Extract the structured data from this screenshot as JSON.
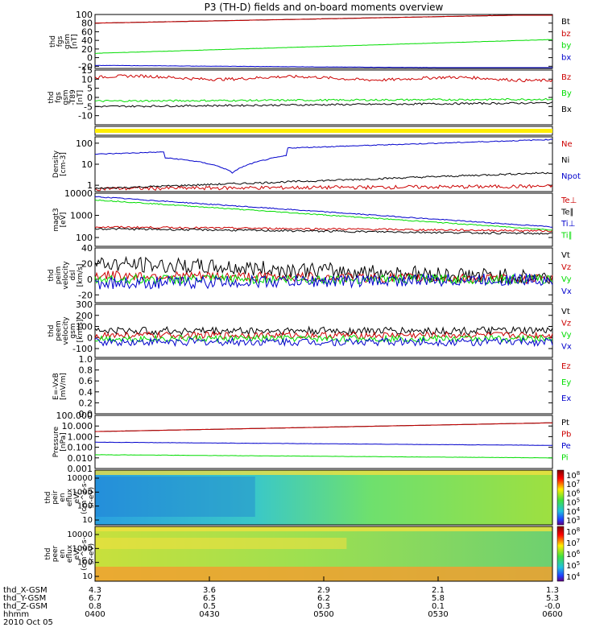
{
  "title": "P3 (TH-D) fields and on-board moments overview",
  "colors": {
    "black": "#000000",
    "red": "#cc0000",
    "green": "#00dd00",
    "blue": "#0000cc",
    "yellow": "#ffee00"
  },
  "chart_data": [
    {
      "type": "line",
      "id": "fgs",
      "ylabel": [
        "thd",
        "fgs",
        "gsm",
        "[nT]"
      ],
      "ylim": [
        -25,
        100
      ],
      "yscale": "linear",
      "ticks": [
        "100",
        "80",
        "60",
        "40",
        "20",
        "0",
        "-20"
      ],
      "tickvals": [
        100,
        80,
        60,
        40,
        20,
        0,
        -20
      ],
      "series": [
        {
          "name": "Bt",
          "color": "black",
          "from": 80,
          "to": 100,
          "noise": 0.3
        },
        {
          "name": "bz",
          "color": "red",
          "from": 80,
          "to": 100,
          "noise": 0.3
        },
        {
          "name": "by",
          "color": "green",
          "from": 10,
          "to": 42,
          "noise": 0.3
        },
        {
          "name": "bx",
          "color": "blue",
          "from": -18,
          "to": -25,
          "noise": 0.3
        }
      ]
    },
    {
      "type": "line",
      "id": "fgs_lo",
      "ylabel": [
        "thd",
        "fgs",
        "gsm",
        "-T89",
        "[nT]"
      ],
      "ylim": [
        -15,
        15
      ],
      "yscale": "linear",
      "ticks": [
        "15",
        "10",
        "5",
        "0",
        "-5",
        "-10"
      ],
      "tickvals": [
        15,
        10,
        5,
        0,
        -5,
        -10
      ],
      "series": [
        {
          "name": "Bz",
          "color": "red",
          "from": 11,
          "to": 10,
          "noise": 0.8,
          "wave": 1
        },
        {
          "name": "By",
          "color": "green",
          "from": -2,
          "to": -1,
          "noise": 0.5
        },
        {
          "name": "Bx",
          "color": "black",
          "from": -5,
          "to": -3,
          "noise": 0.5
        }
      ]
    },
    {
      "type": "line",
      "id": "density",
      "ylabel": [
        "Density",
        "[cm-3]"
      ],
      "ylim": [
        0.5,
        200
      ],
      "yscale": "log",
      "ticks": [
        "100",
        "10",
        "1"
      ],
      "tickvals": [
        100,
        10,
        1
      ],
      "series": [
        {
          "name": "Ne",
          "color": "red",
          "from": 0.7,
          "to": 0.9,
          "noise": 0.2
        },
        {
          "name": "Ni",
          "color": "black",
          "from": 0.7,
          "to": 4,
          "noise": 0.1
        },
        {
          "name": "Npot",
          "color": "blue",
          "from": 30,
          "to": 150,
          "noise": 0.05,
          "dip": 1
        }
      ]
    },
    {
      "type": "line",
      "id": "temps",
      "ylabel": [
        "magt3",
        "[eV]"
      ],
      "ylim": [
        40,
        10000
      ],
      "yscale": "log",
      "ticks": [
        "10000",
        "1000",
        "100"
      ],
      "tickvals": [
        10000,
        1000,
        100
      ],
      "series": [
        {
          "name": "Te⊥",
          "color": "red",
          "from": 300,
          "to": 200,
          "noise": 0.1
        },
        {
          "name": "Te∥",
          "color": "black",
          "from": 250,
          "to": 150,
          "noise": 0.1
        },
        {
          "name": "Ti⊥",
          "color": "blue",
          "from": 7000,
          "to": 300,
          "noise": 0.05
        },
        {
          "name": "Ti∥",
          "color": "green",
          "from": 5000,
          "to": 220,
          "noise": 0.05
        }
      ]
    },
    {
      "type": "line",
      "id": "peim",
      "ylabel": [
        "thd",
        "peim",
        "velocity",
        "dsl",
        "[km/s]"
      ],
      "ylim": [
        -30,
        40
      ],
      "yscale": "linear",
      "ticks": [
        "40",
        "20",
        "0",
        "-20"
      ],
      "tickvals": [
        40,
        20,
        0,
        -20
      ],
      "series": [
        {
          "name": "Vt",
          "color": "black",
          "from": 20,
          "to": 2,
          "noise": 10
        },
        {
          "name": "Vz",
          "color": "red",
          "from": 5,
          "to": 0,
          "noise": 6
        },
        {
          "name": "Vy",
          "color": "green",
          "from": 0,
          "to": 0,
          "noise": 6
        },
        {
          "name": "Vx",
          "color": "blue",
          "from": -5,
          "to": 0,
          "noise": 8
        }
      ]
    },
    {
      "type": "line",
      "id": "peem",
      "ylabel": [
        "thd",
        "peem",
        "velocity",
        "gsm",
        "[km/s]"
      ],
      "ylim": [
        -180,
        300
      ],
      "yscale": "linear",
      "ticks": [
        "300",
        "200",
        "100",
        "0",
        "-100"
      ],
      "tickvals": [
        300,
        200,
        100,
        0,
        -100
      ],
      "series": [
        {
          "name": "Vt",
          "color": "black",
          "from": 60,
          "to": 60,
          "noise": 35
        },
        {
          "name": "Vz",
          "color": "red",
          "from": 20,
          "to": 20,
          "noise": 30
        },
        {
          "name": "Vy",
          "color": "green",
          "from": -10,
          "to": -10,
          "noise": 30
        },
        {
          "name": "Vx",
          "color": "blue",
          "from": -40,
          "to": -40,
          "noise": 35
        }
      ]
    },
    {
      "type": "line",
      "id": "efield",
      "ylabel": [
        "E=-VxB",
        "[mV/m]"
      ],
      "ylim": [
        0,
        1
      ],
      "yscale": "linear",
      "ticks": [
        "1.0",
        "0.8",
        "0.6",
        "0.4",
        "0.2",
        "0.0"
      ],
      "tickvals": [
        1,
        0.8,
        0.6,
        0.4,
        0.2,
        0
      ],
      "series": [
        {
          "name": "Ez",
          "color": "red"
        },
        {
          "name": "Ey",
          "color": "green"
        },
        {
          "name": "Ex",
          "color": "blue"
        }
      ]
    },
    {
      "type": "line",
      "id": "pressure",
      "ylabel": [
        "Pressure",
        "[nPa]"
      ],
      "ylim": [
        0.001,
        100
      ],
      "yscale": "log",
      "ticks": [
        "100.000",
        "10.000",
        "1.000",
        "0.100",
        "0.010",
        "0.001"
      ],
      "tickvals": [
        100,
        10,
        1,
        0.1,
        0.01,
        0.001
      ],
      "series": [
        {
          "name": "Pt",
          "color": "black",
          "from": 3,
          "to": 20,
          "noise": 0.02
        },
        {
          "name": "Pb",
          "color": "red",
          "from": 3,
          "to": 20,
          "noise": 0.02
        },
        {
          "name": "Pe",
          "color": "blue",
          "from": 0.3,
          "to": 0.15,
          "noise": 0.03
        },
        {
          "name": "Pi",
          "color": "green",
          "from": 0.02,
          "to": 0.01,
          "noise": 0.03
        }
      ]
    },
    {
      "type": "heatmap",
      "id": "peir",
      "ylabel": [
        "thd",
        "peir",
        "en",
        "eflux",
        "eV/",
        "(cm^2-s-",
        "sr-eV)"
      ],
      "ticks": [
        "10000",
        "1000",
        "100",
        "10"
      ],
      "colorbar": [
        "10^8",
        "10^7",
        "10^6",
        "10^5",
        "10^4",
        "10^3"
      ]
    },
    {
      "type": "heatmap",
      "id": "peer",
      "ylabel": [
        "thd",
        "peer",
        "en",
        "eflux",
        "eV/",
        "(cm^2-s-",
        "sr-eV)"
      ],
      "ticks": [
        "10000",
        "1000",
        "100",
        "10"
      ],
      "colorbar": [
        "10^8",
        "10^7",
        "10^6",
        "10^5",
        "10^4"
      ]
    }
  ],
  "xaxis": {
    "rows": [
      {
        "label": "thd_X-GSM",
        "values": [
          "4.3",
          "3.6",
          "2.9",
          "2.1",
          "1.3"
        ]
      },
      {
        "label": "thd_Y-GSM",
        "values": [
          "6.7",
          "6.5",
          "6.2",
          "5.8",
          "5.3"
        ]
      },
      {
        "label": "thd_Z-GSM",
        "values": [
          "0.8",
          "0.5",
          "0.3",
          "0.1",
          "-0.0"
        ]
      },
      {
        "label": "hhmm",
        "values": [
          "0400",
          "0430",
          "0500",
          "0530",
          "0600"
        ]
      }
    ],
    "date": "2010 Oct 05"
  }
}
